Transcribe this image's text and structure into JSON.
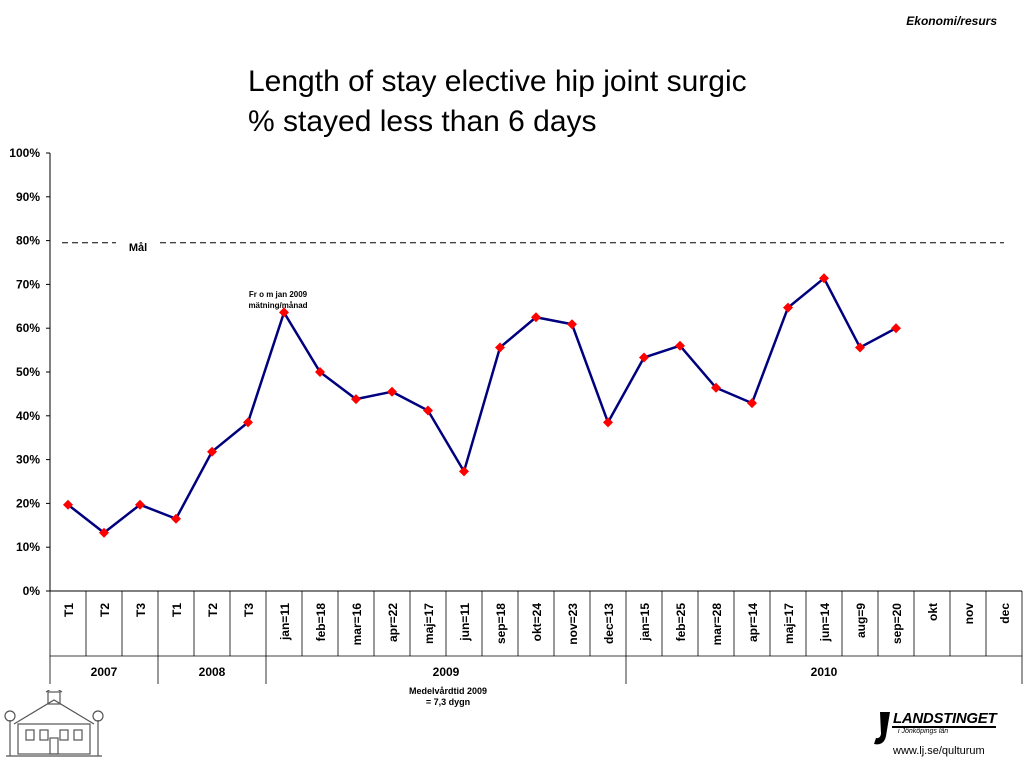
{
  "header": {
    "tag": "Ekonomi/resurs"
  },
  "title": {
    "line1": "Length of stay  elective hip joint surgic",
    "line2": "% stayed less than 6 days"
  },
  "annotations": {
    "from_jan_line1": "Fr o m jan 2009",
    "from_jan_line2": "mätning/månad",
    "mean_line1": "Medelvårdtid 2009",
    "mean_line2": "= 7,3 dygn"
  },
  "footer": {
    "url": "www.lj.se/qulturum",
    "brand": "LANDSTINGET",
    "brand_sub": "i Jönköpings län"
  },
  "chart_data": {
    "type": "line",
    "title": "",
    "ylabel": "",
    "ylim": [
      0,
      1
    ],
    "yticks": [
      "0%",
      "10%",
      "20%",
      "30%",
      "40%",
      "50%",
      "60%",
      "70%",
      "80%",
      "90%",
      "100%"
    ],
    "categories": [
      "T1",
      "T2",
      "T3",
      "T1",
      "T2",
      "T3",
      "jan=11",
      "feb=18",
      "mar=16",
      "apr=22",
      "maj=17",
      "jun=11",
      "sep=18",
      "okt=24",
      "nov=23",
      "dec=13",
      "jan=15",
      "feb=25",
      "mar=28",
      "apr=14",
      "maj=17",
      "jun=14",
      "aug=9",
      "sep=20",
      "okt",
      "nov",
      "dec"
    ],
    "groups": [
      {
        "label": "2007",
        "count": 3
      },
      {
        "label": "2008",
        "count": 3
      },
      {
        "label": "2009",
        "count": 10
      },
      {
        "label": "2010",
        "count": 11
      }
    ],
    "series": [
      {
        "values": [
          0.197,
          0.133,
          0.197,
          0.165,
          0.318,
          0.385,
          0.636,
          0.5,
          0.438,
          0.455,
          0.412,
          0.273,
          0.556,
          0.625,
          0.609,
          0.385,
          0.533,
          0.56,
          0.464,
          0.429,
          0.647,
          0.714,
          0.556,
          0.6,
          null,
          null,
          null
        ]
      }
    ],
    "target": {
      "label": "Mål",
      "value": 0.795
    },
    "line_color": "#00007f",
    "marker_color": "#ff0000",
    "grid": false
  }
}
